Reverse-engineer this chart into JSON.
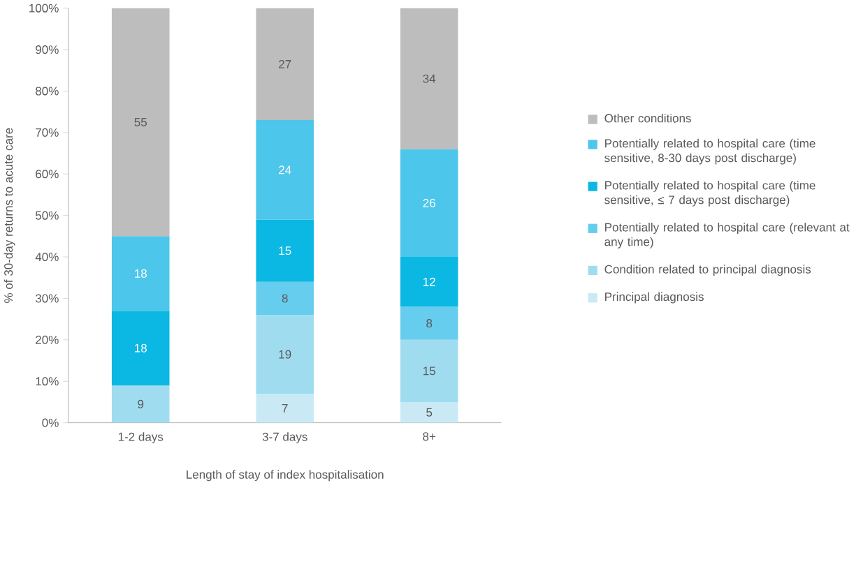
{
  "chart_data": {
    "type": "bar",
    "stacked": true,
    "xlabel": "Length of stay of index hospitalisation",
    "ylabel": "% of 30-day returns to acute care",
    "categories": [
      "1-2 days",
      "3-7 days",
      "8+"
    ],
    "series": [
      {
        "name": "Principal diagnosis",
        "color": "#c9eaf5",
        "values": [
          null,
          7,
          5
        ]
      },
      {
        "name": "Condition related to principal diagnosis",
        "color": "#a0dcf0",
        "values": [
          9,
          19,
          15
        ]
      },
      {
        "name": "Potentially related to hospital care (relevant at any time)",
        "color": "#66cdee",
        "values": [
          null,
          8,
          8
        ]
      },
      {
        "name": "Potentially related to hospital care (time sensitive, ≤ 7 days post discharge)",
        "color": "#0bb8e3",
        "values": [
          18,
          15,
          12
        ]
      },
      {
        "name": "Potentially related to hospital care (time sensitive, 8-30 days post discharge)",
        "color": "#4cc6ea",
        "values": [
          18,
          24,
          26
        ]
      },
      {
        "name": "Other conditions",
        "color": "#bdbdbd",
        "values": [
          55,
          27,
          34
        ]
      }
    ],
    "ylim": [
      0,
      100
    ],
    "yticks": [
      {
        "value": 0,
        "label": "0%"
      },
      {
        "value": 10,
        "label": "10%"
      },
      {
        "value": 20,
        "label": "20%"
      },
      {
        "value": 30,
        "label": "30%"
      },
      {
        "value": 40,
        "label": "40%"
      },
      {
        "value": 50,
        "label": "50%"
      },
      {
        "value": 60,
        "label": "60%"
      },
      {
        "value": 70,
        "label": "70%"
      },
      {
        "value": 80,
        "label": "80%"
      },
      {
        "value": 90,
        "label": "90%"
      },
      {
        "value": 100,
        "label": "100%"
      }
    ],
    "data_labels": true,
    "legend": "right",
    "grid": false
  }
}
